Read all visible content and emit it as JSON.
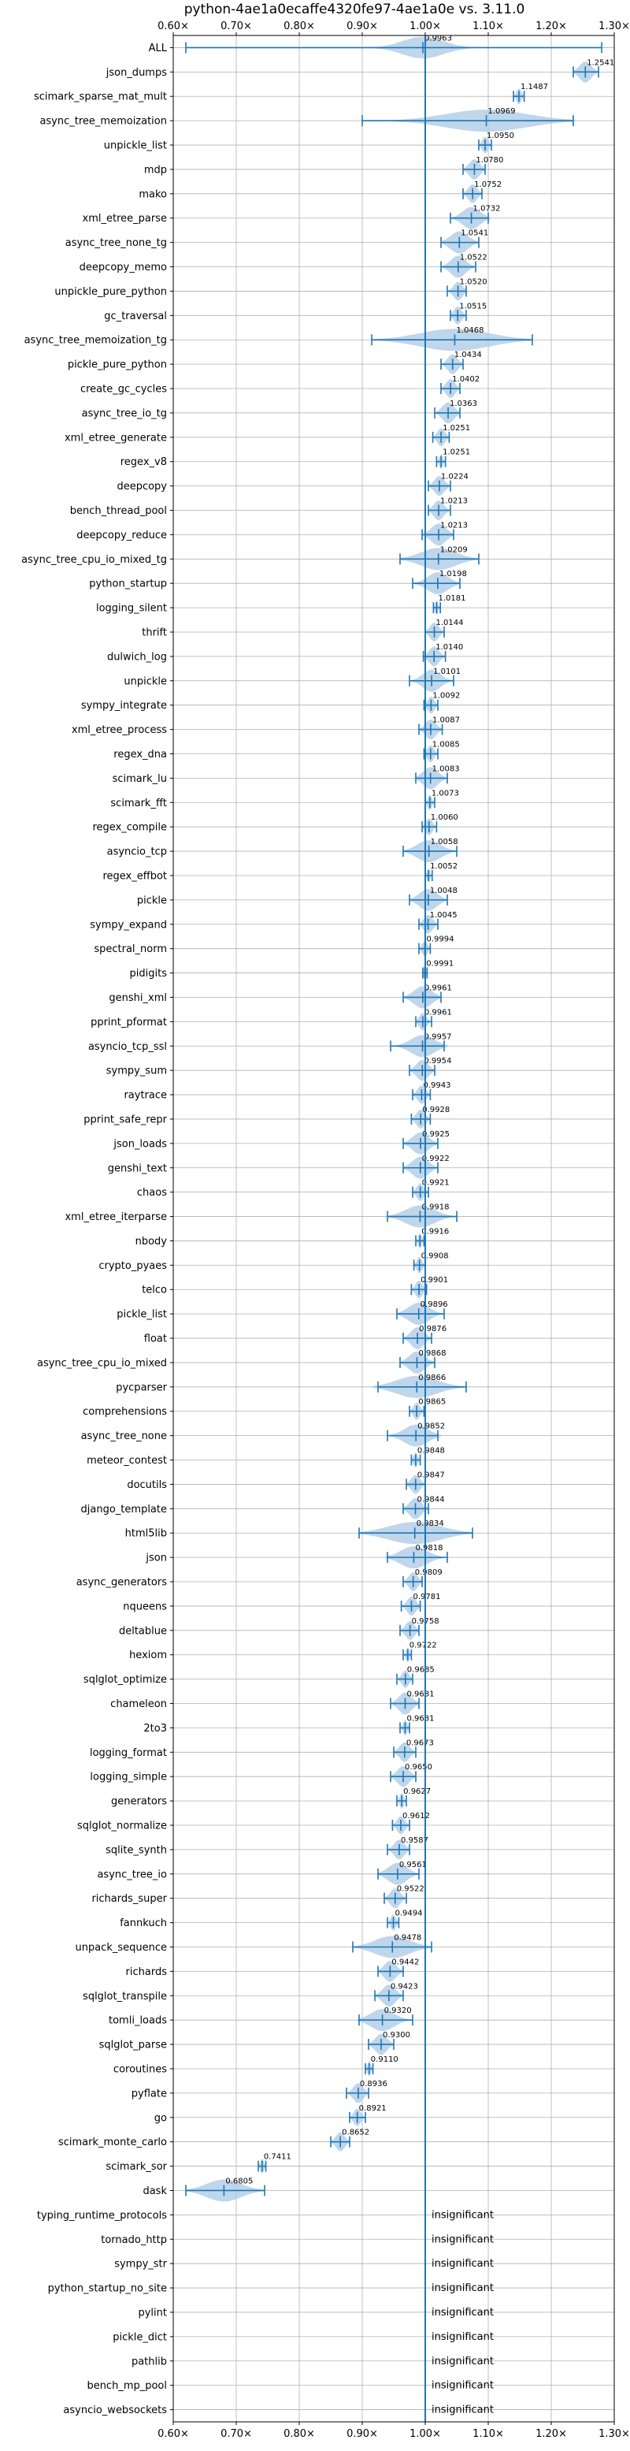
{
  "chart_data": {
    "type": "violin",
    "title": "python-4ae1a0ecaffe4320fe97-4ae1a0e vs. 3.11.0",
    "xlim": [
      0.6,
      1.3
    ],
    "xticks": [
      0.6,
      0.7,
      0.8,
      0.9,
      1.0,
      1.1,
      1.2,
      1.3
    ],
    "xtick_labels": [
      "0.60×",
      "0.70×",
      "0.80×",
      "0.90×",
      "1.00×",
      "1.10×",
      "1.20×",
      "1.30×"
    ],
    "reference_line": 1.0,
    "grid": true,
    "accent_color": "#1f77b4",
    "fill_color": "#a9c8e4",
    "insignificant_label": "insignificant",
    "benchmarks": [
      {
        "name": "ALL",
        "value": 0.9963,
        "label": "0.9963",
        "min": 0.62,
        "max": 1.28,
        "spread": 0.07
      },
      {
        "name": "json_dumps",
        "value": 1.2541,
        "label": "1.2541",
        "min": 1.235,
        "max": 1.275,
        "spread": 0.02
      },
      {
        "name": "scimark_sparse_mat_mult",
        "value": 1.1487,
        "label": "1.1487",
        "min": 1.14,
        "max": 1.157,
        "spread": 0.008
      },
      {
        "name": "async_tree_memoization",
        "value": 1.0969,
        "label": "1.0969",
        "min": 0.9,
        "max": 1.235,
        "spread": 0.14
      },
      {
        "name": "unpickle_list",
        "value": 1.095,
        "label": "1.0950",
        "min": 1.085,
        "max": 1.105,
        "spread": 0.01
      },
      {
        "name": "mdp",
        "value": 1.078,
        "label": "1.0780",
        "min": 1.06,
        "max": 1.095,
        "spread": 0.018
      },
      {
        "name": "mako",
        "value": 1.0752,
        "label": "1.0752",
        "min": 1.06,
        "max": 1.09,
        "spread": 0.015
      },
      {
        "name": "xml_etree_parse",
        "value": 1.0732,
        "label": "1.0732",
        "min": 1.04,
        "max": 1.1,
        "spread": 0.03
      },
      {
        "name": "async_tree_none_tg",
        "value": 1.0541,
        "label": "1.0541",
        "min": 1.025,
        "max": 1.085,
        "spread": 0.03
      },
      {
        "name": "deepcopy_memo",
        "value": 1.0522,
        "label": "1.0522",
        "min": 1.025,
        "max": 1.08,
        "spread": 0.025
      },
      {
        "name": "unpickle_pure_python",
        "value": 1.052,
        "label": "1.0520",
        "min": 1.035,
        "max": 1.065,
        "spread": 0.015
      },
      {
        "name": "gc_traversal",
        "value": 1.0515,
        "label": "1.0515",
        "min": 1.04,
        "max": 1.065,
        "spread": 0.013
      },
      {
        "name": "async_tree_memoization_tg",
        "value": 1.0468,
        "label": "1.0468",
        "min": 0.915,
        "max": 1.17,
        "spread": 0.12
      },
      {
        "name": "pickle_pure_python",
        "value": 1.0434,
        "label": "1.0434",
        "min": 1.025,
        "max": 1.06,
        "spread": 0.017
      },
      {
        "name": "create_gc_cycles",
        "value": 1.0402,
        "label": "1.0402",
        "min": 1.025,
        "max": 1.055,
        "spread": 0.015
      },
      {
        "name": "async_tree_io_tg",
        "value": 1.0363,
        "label": "1.0363",
        "min": 1.015,
        "max": 1.055,
        "spread": 0.02
      },
      {
        "name": "xml_etree_generate",
        "value": 1.0251,
        "label": "1.0251",
        "min": 1.012,
        "max": 1.038,
        "spread": 0.013
      },
      {
        "name": "regex_v8",
        "value": 1.0251,
        "label": "1.0251",
        "min": 1.018,
        "max": 1.032,
        "spread": 0.006
      },
      {
        "name": "deepcopy",
        "value": 1.0224,
        "label": "1.0224",
        "min": 1.005,
        "max": 1.04,
        "spread": 0.017
      },
      {
        "name": "bench_thread_pool",
        "value": 1.0213,
        "label": "1.0213",
        "min": 1.005,
        "max": 1.04,
        "spread": 0.017
      },
      {
        "name": "deepcopy_reduce",
        "value": 1.0213,
        "label": "1.0213",
        "min": 0.995,
        "max": 1.045,
        "spread": 0.025
      },
      {
        "name": "async_tree_cpu_io_mixed_tg",
        "value": 1.0209,
        "label": "1.0209",
        "min": 0.96,
        "max": 1.085,
        "spread": 0.06
      },
      {
        "name": "python_startup",
        "value": 1.0198,
        "label": "1.0198",
        "min": 0.98,
        "max": 1.055,
        "spread": 0.035
      },
      {
        "name": "logging_silent",
        "value": 1.0181,
        "label": "1.0181",
        "min": 1.013,
        "max": 1.024,
        "spread": 0.005
      },
      {
        "name": "thrift",
        "value": 1.0144,
        "label": "1.0144",
        "min": 1.0,
        "max": 1.03,
        "spread": 0.015
      },
      {
        "name": "dulwich_log",
        "value": 1.014,
        "label": "1.0140",
        "min": 0.997,
        "max": 1.032,
        "spread": 0.017
      },
      {
        "name": "unpickle",
        "value": 1.0101,
        "label": "1.0101",
        "min": 0.975,
        "max": 1.045,
        "spread": 0.03
      },
      {
        "name": "sympy_integrate",
        "value": 1.0092,
        "label": "1.0092",
        "min": 0.998,
        "max": 1.02,
        "spread": 0.011
      },
      {
        "name": "xml_etree_process",
        "value": 1.0087,
        "label": "1.0087",
        "min": 0.99,
        "max": 1.027,
        "spread": 0.018
      },
      {
        "name": "regex_dna",
        "value": 1.0085,
        "label": "1.0085",
        "min": 0.998,
        "max": 1.02,
        "spread": 0.011
      },
      {
        "name": "scimark_lu",
        "value": 1.0083,
        "label": "1.0083",
        "min": 0.985,
        "max": 1.035,
        "spread": 0.025
      },
      {
        "name": "scimark_fft",
        "value": 1.0073,
        "label": "1.0073",
        "min": 1.0,
        "max": 1.015,
        "spread": 0.007
      },
      {
        "name": "regex_compile",
        "value": 1.006,
        "label": "1.0060",
        "min": 0.995,
        "max": 1.018,
        "spread": 0.011
      },
      {
        "name": "asyncio_tcp",
        "value": 1.0058,
        "label": "1.0058",
        "min": 0.965,
        "max": 1.05,
        "spread": 0.04
      },
      {
        "name": "regex_effbot",
        "value": 1.0052,
        "label": "1.0052",
        "min": 1.0,
        "max": 1.011,
        "spread": 0.005
      },
      {
        "name": "pickle",
        "value": 1.0048,
        "label": "1.0048",
        "min": 0.975,
        "max": 1.035,
        "spread": 0.03
      },
      {
        "name": "sympy_expand",
        "value": 1.0045,
        "label": "1.0045",
        "min": 0.99,
        "max": 1.02,
        "spread": 0.015
      },
      {
        "name": "spectral_norm",
        "value": 0.9994,
        "label": "0.9994",
        "min": 0.99,
        "max": 1.008,
        "spread": 0.009
      },
      {
        "name": "pidigits",
        "value": 0.9991,
        "label": "0.9991",
        "min": 0.996,
        "max": 1.003,
        "spread": 0.003
      },
      {
        "name": "genshi_xml",
        "value": 0.9961,
        "label": "0.9961",
        "min": 0.965,
        "max": 1.025,
        "spread": 0.03
      },
      {
        "name": "pprint_pformat",
        "value": 0.9961,
        "label": "0.9961",
        "min": 0.985,
        "max": 1.01,
        "spread": 0.012
      },
      {
        "name": "asyncio_tcp_ssl",
        "value": 0.9957,
        "label": "0.9957",
        "min": 0.945,
        "max": 1.03,
        "spread": 0.04
      },
      {
        "name": "sympy_sum",
        "value": 0.9954,
        "label": "0.9954",
        "min": 0.975,
        "max": 1.015,
        "spread": 0.02
      },
      {
        "name": "raytrace",
        "value": 0.9943,
        "label": "0.9943",
        "min": 0.98,
        "max": 1.008,
        "spread": 0.014
      },
      {
        "name": "pprint_safe_repr",
        "value": 0.9928,
        "label": "0.9928",
        "min": 0.978,
        "max": 1.008,
        "spread": 0.015
      },
      {
        "name": "json_loads",
        "value": 0.9925,
        "label": "0.9925",
        "min": 0.965,
        "max": 1.02,
        "spread": 0.027
      },
      {
        "name": "genshi_text",
        "value": 0.9922,
        "label": "0.9922",
        "min": 0.965,
        "max": 1.02,
        "spread": 0.027
      },
      {
        "name": "chaos",
        "value": 0.9921,
        "label": "0.9921",
        "min": 0.98,
        "max": 1.005,
        "spread": 0.012
      },
      {
        "name": "xml_etree_iterparse",
        "value": 0.9918,
        "label": "0.9918",
        "min": 0.94,
        "max": 1.05,
        "spread": 0.05
      },
      {
        "name": "nbody",
        "value": 0.9916,
        "label": "0.9916",
        "min": 0.985,
        "max": 0.998,
        "spread": 0.006
      },
      {
        "name": "crypto_pyaes",
        "value": 0.9908,
        "label": "0.9908",
        "min": 0.982,
        "max": 1.0,
        "spread": 0.009
      },
      {
        "name": "telco",
        "value": 0.9901,
        "label": "0.9901",
        "min": 0.978,
        "max": 1.002,
        "spread": 0.012
      },
      {
        "name": "pickle_list",
        "value": 0.9896,
        "label": "0.9896",
        "min": 0.955,
        "max": 1.03,
        "spread": 0.035
      },
      {
        "name": "float",
        "value": 0.9876,
        "label": "0.9876",
        "min": 0.965,
        "max": 1.01,
        "spread": 0.022
      },
      {
        "name": "async_tree_cpu_io_mixed",
        "value": 0.9868,
        "label": "0.9868",
        "min": 0.96,
        "max": 1.015,
        "spread": 0.027
      },
      {
        "name": "pycparser",
        "value": 0.9866,
        "label": "0.9866",
        "min": 0.925,
        "max": 1.065,
        "spread": 0.07
      },
      {
        "name": "comprehensions",
        "value": 0.9865,
        "label": "0.9865",
        "min": 0.975,
        "max": 0.998,
        "spread": 0.011
      },
      {
        "name": "async_tree_none",
        "value": 0.9852,
        "label": "0.9852",
        "min": 0.94,
        "max": 1.02,
        "spread": 0.04
      },
      {
        "name": "meteor_contest",
        "value": 0.9848,
        "label": "0.9848",
        "min": 0.978,
        "max": 0.992,
        "spread": 0.007
      },
      {
        "name": "docutils",
        "value": 0.9847,
        "label": "0.9847",
        "min": 0.97,
        "max": 1.0,
        "spread": 0.015
      },
      {
        "name": "django_template",
        "value": 0.9844,
        "label": "0.9844",
        "min": 0.965,
        "max": 1.005,
        "spread": 0.02
      },
      {
        "name": "html5lib",
        "value": 0.9834,
        "label": "0.9834",
        "min": 0.895,
        "max": 1.075,
        "spread": 0.09
      },
      {
        "name": "json",
        "value": 0.9818,
        "label": "0.9818",
        "min": 0.94,
        "max": 1.035,
        "spread": 0.045
      },
      {
        "name": "async_generators",
        "value": 0.9809,
        "label": "0.9809",
        "min": 0.965,
        "max": 0.995,
        "spread": 0.015
      },
      {
        "name": "nqueens",
        "value": 0.9781,
        "label": "0.9781",
        "min": 0.962,
        "max": 0.992,
        "spread": 0.015
      },
      {
        "name": "deltablue",
        "value": 0.9758,
        "label": "0.9758",
        "min": 0.96,
        "max": 0.99,
        "spread": 0.015
      },
      {
        "name": "hexiom",
        "value": 0.9722,
        "label": "0.9722",
        "min": 0.965,
        "max": 0.978,
        "spread": 0.006
      },
      {
        "name": "sqlglot_optimize",
        "value": 0.9685,
        "label": "0.9685",
        "min": 0.955,
        "max": 0.98,
        "spread": 0.012
      },
      {
        "name": "chameleon",
        "value": 0.9681,
        "label": "0.9681",
        "min": 0.945,
        "max": 0.99,
        "spread": 0.022
      },
      {
        "name": "2to3",
        "value": 0.9681,
        "label": "0.9681",
        "min": 0.96,
        "max": 0.975,
        "spread": 0.007
      },
      {
        "name": "logging_format",
        "value": 0.9673,
        "label": "0.9673",
        "min": 0.95,
        "max": 0.985,
        "spread": 0.017
      },
      {
        "name": "logging_simple",
        "value": 0.965,
        "label": "0.9650",
        "min": 0.945,
        "max": 0.985,
        "spread": 0.02
      },
      {
        "name": "generators",
        "value": 0.9627,
        "label": "0.9627",
        "min": 0.955,
        "max": 0.97,
        "spread": 0.007
      },
      {
        "name": "sqlglot_normalize",
        "value": 0.9612,
        "label": "0.9612",
        "min": 0.948,
        "max": 0.975,
        "spread": 0.013
      },
      {
        "name": "sqlite_synth",
        "value": 0.9587,
        "label": "0.9587",
        "min": 0.94,
        "max": 0.975,
        "spread": 0.017
      },
      {
        "name": "async_tree_io",
        "value": 0.9561,
        "label": "0.9561",
        "min": 0.925,
        "max": 0.99,
        "spread": 0.032
      },
      {
        "name": "richards_super",
        "value": 0.9522,
        "label": "0.9522",
        "min": 0.935,
        "max": 0.97,
        "spread": 0.017
      },
      {
        "name": "fannkuch",
        "value": 0.9494,
        "label": "0.9494",
        "min": 0.94,
        "max": 0.958,
        "spread": 0.009
      },
      {
        "name": "unpack_sequence",
        "value": 0.9478,
        "label": "0.9478",
        "min": 0.885,
        "max": 1.01,
        "spread": 0.06
      },
      {
        "name": "richards",
        "value": 0.9442,
        "label": "0.9442",
        "min": 0.925,
        "max": 0.965,
        "spread": 0.02
      },
      {
        "name": "sqlglot_transpile",
        "value": 0.9423,
        "label": "0.9423",
        "min": 0.92,
        "max": 0.965,
        "spread": 0.022
      },
      {
        "name": "tomli_loads",
        "value": 0.932,
        "label": "0.9320",
        "min": 0.895,
        "max": 0.98,
        "spread": 0.04
      },
      {
        "name": "sqlglot_parse",
        "value": 0.93,
        "label": "0.9300",
        "min": 0.91,
        "max": 0.95,
        "spread": 0.02
      },
      {
        "name": "coroutines",
        "value": 0.911,
        "label": "0.9110",
        "min": 0.905,
        "max": 0.917,
        "spread": 0.006
      },
      {
        "name": "pyflate",
        "value": 0.8936,
        "label": "0.8936",
        "min": 0.875,
        "max": 0.91,
        "spread": 0.017
      },
      {
        "name": "go",
        "value": 0.8921,
        "label": "0.8921",
        "min": 0.88,
        "max": 0.905,
        "spread": 0.012
      },
      {
        "name": "scimark_monte_carlo",
        "value": 0.8652,
        "label": "0.8652",
        "min": 0.85,
        "max": 0.88,
        "spread": 0.015
      },
      {
        "name": "scimark_sor",
        "value": 0.7411,
        "label": "0.7411",
        "min": 0.735,
        "max": 0.747,
        "spread": 0.006
      },
      {
        "name": "dask",
        "value": 0.6805,
        "label": "0.6805",
        "min": 0.62,
        "max": 0.745,
        "spread": 0.06
      },
      {
        "name": "typing_runtime_protocols",
        "value": null,
        "label": null
      },
      {
        "name": "tornado_http",
        "value": null,
        "label": null
      },
      {
        "name": "sympy_str",
        "value": null,
        "label": null
      },
      {
        "name": "python_startup_no_site",
        "value": null,
        "label": null
      },
      {
        "name": "pylint",
        "value": null,
        "label": null
      },
      {
        "name": "pickle_dict",
        "value": null,
        "label": null
      },
      {
        "name": "pathlib",
        "value": null,
        "label": null
      },
      {
        "name": "bench_mp_pool",
        "value": null,
        "label": null
      },
      {
        "name": "asyncio_websockets",
        "value": null,
        "label": null
      }
    ]
  }
}
